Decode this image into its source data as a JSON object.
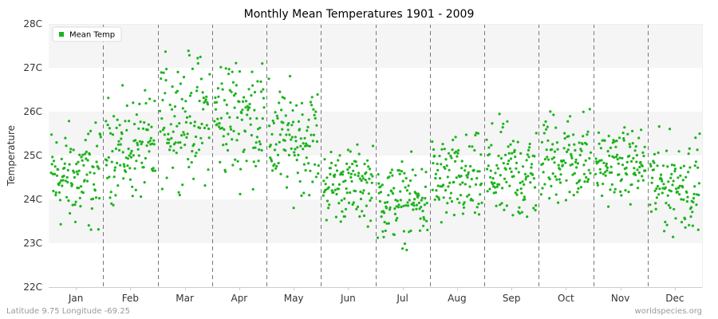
{
  "chart_data": {
    "type": "scatter",
    "title": "Monthly Mean Temperatures 1901 - 2009",
    "ylabel": "Temperature",
    "xlabel": "",
    "categories": [
      "Jan",
      "Feb",
      "Mar",
      "Apr",
      "May",
      "Jun",
      "Jul",
      "Aug",
      "Sep",
      "Oct",
      "Nov",
      "Dec"
    ],
    "y_tick_labels": [
      "22C",
      "23C",
      "24C",
      "25C",
      "26C",
      "27C",
      "28C"
    ],
    "y_ticks": [
      22,
      23,
      24,
      25,
      26,
      27,
      28
    ],
    "ylim": [
      22,
      28
    ],
    "grid": "alternating horizontal bands, dashed vertical month separators",
    "legend": {
      "placement": "top-left",
      "entries": [
        "Mean Temp"
      ]
    },
    "series": [
      {
        "name": "Mean Temp",
        "color": "#1db31d",
        "points_per_month": 109,
        "typical_range": {
          "Jan": [
            23.0,
            26.0
          ],
          "Feb": [
            23.7,
            26.6
          ],
          "Mar": [
            24.1,
            27.6
          ],
          "Apr": [
            24.1,
            27.7
          ],
          "May": [
            23.8,
            26.9
          ],
          "Jun": [
            23.3,
            25.4
          ],
          "Jul": [
            22.8,
            25.1
          ],
          "Aug": [
            23.1,
            25.7
          ],
          "Sep": [
            23.1,
            26.0
          ],
          "Oct": [
            23.6,
            26.3
          ],
          "Nov": [
            23.8,
            25.8
          ],
          "Dec": [
            23.0,
            25.7
          ]
        }
      }
    ]
  },
  "footer": {
    "left": "Latitude 9.75 Longitude -69.25",
    "right": "worldspecies.org"
  },
  "colors": {
    "band": "#f5f5f5",
    "separator": "#777777",
    "axis": "#cccccc",
    "marker": "#1db31d"
  }
}
